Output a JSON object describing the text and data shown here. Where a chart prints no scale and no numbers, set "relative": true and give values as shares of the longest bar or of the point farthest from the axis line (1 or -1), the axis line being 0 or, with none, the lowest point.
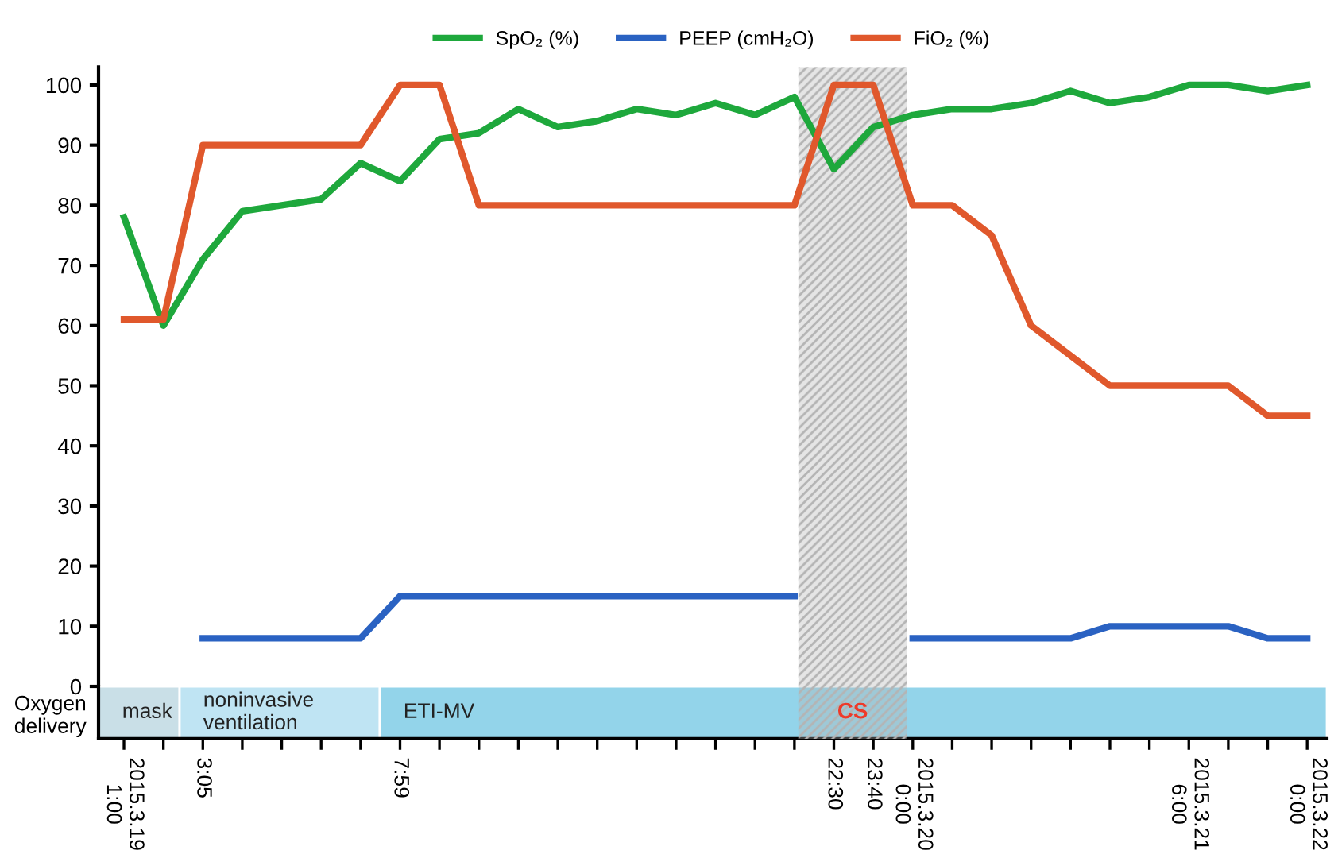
{
  "chart_data": [
    {
      "type": "line",
      "categories": [
        "2015.3.19\n1:00",
        null,
        "3:05",
        null,
        null,
        null,
        null,
        "7:59",
        null,
        null,
        null,
        null,
        null,
        null,
        null,
        null,
        null,
        null,
        "22:30",
        "23:40",
        "2015.3.20\n0:00",
        null,
        null,
        null,
        null,
        null,
        null,
        "2015.3.21\n6:00",
        null,
        null,
        "2015.3.22\n0:00"
      ],
      "series": [
        {
          "name": "SpO₂ (%)",
          "color": "#1ea83c",
          "values": [
            78,
            60,
            71,
            79,
            80,
            81,
            87,
            84,
            91,
            92,
            96,
            93,
            94,
            96,
            95,
            97,
            95,
            98,
            86,
            93,
            95,
            96,
            96,
            97,
            99,
            97,
            98,
            100,
            100,
            99,
            100
          ]
        },
        {
          "name": "PEEP (cmH₂O)",
          "color": "#2a62c2",
          "values": [
            null,
            null,
            8,
            8,
            8,
            8,
            8,
            15,
            15,
            15,
            15,
            15,
            15,
            15,
            15,
            15,
            15,
            15,
            null,
            null,
            8,
            8,
            8,
            8,
            8,
            10,
            10,
            10,
            10,
            8,
            8
          ]
        },
        {
          "name": "FiO₂ (%)",
          "color": "#e0582c",
          "values": [
            61,
            61,
            90,
            90,
            90,
            90,
            90,
            100,
            100,
            80,
            80,
            80,
            80,
            80,
            80,
            80,
            80,
            80,
            100,
            100,
            80,
            80,
            75,
            60,
            55,
            50,
            50,
            50,
            50,
            45,
            45
          ]
        }
      ],
      "ylim": [
        0,
        103
      ],
      "yticks": [
        0,
        10,
        20,
        30,
        40,
        50,
        60,
        70,
        80,
        90,
        100
      ],
      "grid": false,
      "legend": "top",
      "marker": "none",
      "line_style": "solid"
    },
    {
      "type": "bar",
      "orientation": "horizontal",
      "stacked": true,
      "relative": true,
      "categories": [
        "Oxygen\ndelivery"
      ],
      "series": [
        {
          "name": "mask",
          "color": "#c9dfe7",
          "values": [
            0.066
          ]
        },
        {
          "name": "noninvasive\nventilation",
          "color": "#bfe4f3",
          "values": [
            0.163
          ]
        },
        {
          "name": "ETI-MV",
          "color": "#93d4ea",
          "values": [
            0.771
          ]
        }
      ],
      "annotations": [
        "CS"
      ]
    }
  ]
}
